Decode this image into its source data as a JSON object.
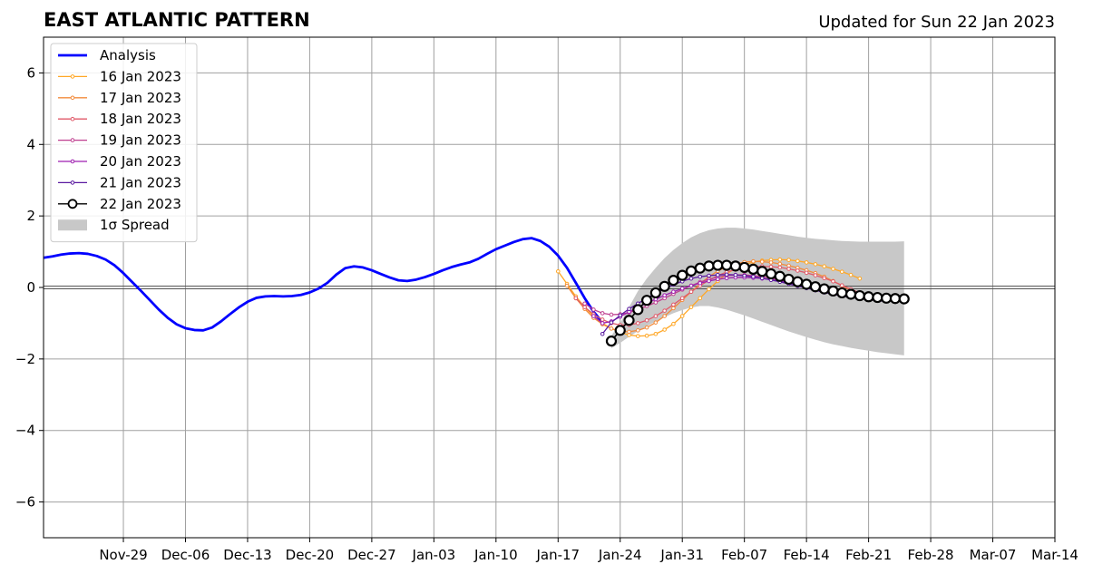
{
  "chart_data": {
    "type": "line",
    "title": "EAST ATLANTIC PATTERN",
    "subtitle": "Updated for Sun 22 Jan 2023",
    "xlabel": "",
    "ylabel": "",
    "xlim": [
      "2022-11-20",
      "2023-03-14"
    ],
    "ylim": [
      -7,
      7
    ],
    "x_ticks": [
      "2022-11-29",
      "2022-12-06",
      "2022-12-13",
      "2022-12-20",
      "2022-12-27",
      "2023-01-03",
      "2023-01-10",
      "2023-01-17",
      "2023-01-24",
      "2023-01-31",
      "2023-02-07",
      "2023-02-14",
      "2023-02-21",
      "2023-02-28",
      "2023-03-07",
      "2023-03-14"
    ],
    "x_tick_labels": [
      "Nov-29",
      "Dec-06",
      "Dec-13",
      "Dec-20",
      "Dec-27",
      "Jan-03",
      "Jan-10",
      "Jan-17",
      "Jan-24",
      "Jan-31",
      "Feb-07",
      "Feb-14",
      "Feb-21",
      "Feb-28",
      "Mar-07",
      "Mar-14"
    ],
    "y_ticks": [
      -6,
      -4,
      -2,
      0,
      2,
      4,
      6
    ],
    "y_tick_labels": [
      "−6",
      "−4",
      "−2",
      "0",
      "2",
      "4",
      "6"
    ],
    "grid": true,
    "legend_position": "top-left",
    "analysis": {
      "name": "Analysis",
      "color": "#0000ff",
      "x": [
        "2022-11-20",
        "2022-11-21",
        "2022-11-22",
        "2022-11-23",
        "2022-11-24",
        "2022-11-25",
        "2022-11-26",
        "2022-11-27",
        "2022-11-28",
        "2022-11-29",
        "2022-11-30",
        "2022-12-01",
        "2022-12-02",
        "2022-12-03",
        "2022-12-04",
        "2022-12-05",
        "2022-12-06",
        "2022-12-07",
        "2022-12-08",
        "2022-12-09",
        "2022-12-10",
        "2022-12-11",
        "2022-12-12",
        "2022-12-13",
        "2022-12-14",
        "2022-12-15",
        "2022-12-16",
        "2022-12-17",
        "2022-12-18",
        "2022-12-19",
        "2022-12-20",
        "2022-12-21",
        "2022-12-22",
        "2022-12-23",
        "2022-12-24",
        "2022-12-25",
        "2022-12-26",
        "2022-12-27",
        "2022-12-28",
        "2022-12-29",
        "2022-12-30",
        "2022-12-31",
        "2023-01-01",
        "2023-01-02",
        "2023-01-03",
        "2023-01-04",
        "2023-01-05",
        "2023-01-06",
        "2023-01-07",
        "2023-01-08",
        "2023-01-09",
        "2023-01-10",
        "2023-01-11",
        "2023-01-12",
        "2023-01-13",
        "2023-01-14",
        "2023-01-15",
        "2023-01-16",
        "2023-01-17",
        "2023-01-18",
        "2023-01-19",
        "2023-01-20",
        "2023-01-21",
        "2023-01-22"
      ],
      "values": [
        0.83,
        0.87,
        0.92,
        0.95,
        0.96,
        0.94,
        0.88,
        0.78,
        0.62,
        0.4,
        0.15,
        -0.1,
        -0.36,
        -0.62,
        -0.85,
        -1.03,
        -1.14,
        -1.19,
        -1.2,
        -1.12,
        -0.95,
        -0.75,
        -0.56,
        -0.4,
        -0.29,
        -0.25,
        -0.24,
        -0.25,
        -0.24,
        -0.21,
        -0.14,
        -0.03,
        0.13,
        0.36,
        0.54,
        0.59,
        0.56,
        0.48,
        0.38,
        0.28,
        0.2,
        0.18,
        0.22,
        0.29,
        0.38,
        0.48,
        0.57,
        0.64,
        0.7,
        0.8,
        0.94,
        1.07,
        1.17,
        1.27,
        1.35,
        1.38,
        1.3,
        1.14,
        0.89,
        0.55,
        0.13,
        -0.3,
        -0.68,
        -0.97
      ]
    },
    "series": [
      {
        "name": "16 Jan 2023",
        "color": "#ffa726",
        "start": "2023-01-17",
        "step_days": 1,
        "values": [
          0.45,
          0.1,
          -0.25,
          -0.55,
          -0.8,
          -1.0,
          -1.15,
          -1.25,
          -1.33,
          -1.36,
          -1.35,
          -1.3,
          -1.18,
          -1.02,
          -0.8,
          -0.55,
          -0.3,
          -0.05,
          0.18,
          0.38,
          0.54,
          0.64,
          0.71,
          0.75,
          0.77,
          0.78,
          0.77,
          0.74,
          0.7,
          0.65,
          0.59,
          0.52,
          0.44,
          0.35,
          0.25
        ]
      },
      {
        "name": "17 Jan 2023",
        "color": "#f28b3c",
        "start": "2023-01-18",
        "step_days": 1,
        "values": [
          0.05,
          -0.3,
          -0.6,
          -0.85,
          -1.03,
          -1.15,
          -1.22,
          -1.24,
          -1.2,
          -1.12,
          -0.98,
          -0.8,
          -0.58,
          -0.35,
          -0.12,
          0.1,
          0.3,
          0.46,
          0.58,
          0.66,
          0.71,
          0.73,
          0.72,
          0.7,
          0.66,
          0.61,
          0.55,
          0.48,
          0.4,
          0.3,
          0.18,
          0.05,
          -0.08,
          -0.2
        ]
      },
      {
        "name": "18 Jan 2023",
        "color": "#e05a6a",
        "start": "2023-01-19",
        "step_days": 1,
        "values": [
          -0.3,
          -0.55,
          -0.75,
          -0.9,
          -1.0,
          -1.05,
          -1.05,
          -1.0,
          -0.92,
          -0.8,
          -0.65,
          -0.48,
          -0.3,
          -0.12,
          0.05,
          0.2,
          0.33,
          0.43,
          0.5,
          0.55,
          0.58,
          0.59,
          0.58,
          0.56,
          0.52,
          0.47,
          0.41,
          0.34,
          0.26,
          0.17,
          0.06,
          -0.05,
          -0.15
        ]
      },
      {
        "name": "19 Jan 2023",
        "color": "#bf3f8f",
        "start": "2023-01-20",
        "step_days": 1,
        "values": [
          -0.45,
          -0.62,
          -0.72,
          -0.76,
          -0.75,
          -0.7,
          -0.62,
          -0.52,
          -0.42,
          -0.3,
          -0.18,
          -0.06,
          0.05,
          0.15,
          0.23,
          0.29,
          0.33,
          0.35,
          0.35,
          0.33,
          0.3,
          0.26,
          0.21,
          0.15,
          0.09,
          0.02,
          -0.05,
          -0.11,
          -0.17,
          -0.22,
          -0.27,
          -0.31,
          -0.34
        ]
      },
      {
        "name": "20 Jan 2023",
        "color": "#9e1fb0",
        "start": "2023-01-21",
        "step_days": 1,
        "values": [
          -0.8,
          -1.0,
          -0.95,
          -0.82,
          -0.68,
          -0.56,
          -0.44,
          -0.33,
          -0.22,
          -0.12,
          -0.03,
          0.05,
          0.12,
          0.18,
          0.23,
          0.26,
          0.28,
          0.28,
          0.27,
          0.25,
          0.22,
          0.18,
          0.13,
          0.08,
          0.02,
          -0.04,
          -0.1,
          -0.15,
          -0.2,
          -0.25,
          -0.29,
          -0.33,
          -0.36
        ]
      },
      {
        "name": "21 Jan 2023",
        "color": "#5a1aa0",
        "start": "2023-01-22",
        "step_days": 1,
        "values": [
          -1.3,
          -0.98,
          -0.78,
          -0.6,
          -0.45,
          -0.3,
          -0.16,
          -0.03,
          0.08,
          0.17,
          0.25,
          0.3,
          0.33,
          0.35,
          0.36,
          0.35,
          0.33,
          0.3,
          0.26,
          0.21,
          0.16,
          0.1,
          0.04,
          -0.02,
          -0.08,
          -0.14,
          -0.19,
          -0.24,
          -0.28,
          -0.31,
          -0.34,
          -0.37,
          -0.39
        ]
      },
      {
        "name": "22 Jan 2023",
        "color": "#000000",
        "start": "2023-01-23",
        "step_days": 1,
        "values": [
          -1.5,
          -1.2,
          -0.92,
          -0.62,
          -0.36,
          -0.15,
          0.03,
          0.2,
          0.34,
          0.46,
          0.54,
          0.6,
          0.62,
          0.62,
          0.6,
          0.56,
          0.51,
          0.45,
          0.38,
          0.31,
          0.23,
          0.16,
          0.09,
          0.02,
          -0.04,
          -0.1,
          -0.15,
          -0.19,
          -0.23,
          -0.26,
          -0.28,
          -0.3,
          -0.31,
          -0.32
        ]
      }
    ],
    "spread": {
      "name": "1σ Spread",
      "color": "#c8c8c8",
      "start": "2023-01-23",
      "step_days": 1,
      "upper": [
        -1.35,
        -1.0,
        -0.55,
        -0.1,
        0.25,
        0.55,
        0.82,
        1.05,
        1.24,
        1.4,
        1.52,
        1.6,
        1.65,
        1.67,
        1.67,
        1.65,
        1.62,
        1.58,
        1.54,
        1.5,
        1.46,
        1.42,
        1.39,
        1.36,
        1.34,
        1.32,
        1.3,
        1.29,
        1.28,
        1.28,
        1.28,
        1.28,
        1.28,
        1.29
      ],
      "lower": [
        -1.7,
        -1.55,
        -1.38,
        -1.22,
        -1.08,
        -0.95,
        -0.83,
        -0.72,
        -0.63,
        -0.56,
        -0.52,
        -0.52,
        -0.56,
        -0.62,
        -0.7,
        -0.78,
        -0.87,
        -0.96,
        -1.05,
        -1.14,
        -1.23,
        -1.31,
        -1.39,
        -1.46,
        -1.53,
        -1.59,
        -1.64,
        -1.69,
        -1.73,
        -1.77,
        -1.81,
        -1.84,
        -1.87,
        -1.9
      ]
    }
  }
}
